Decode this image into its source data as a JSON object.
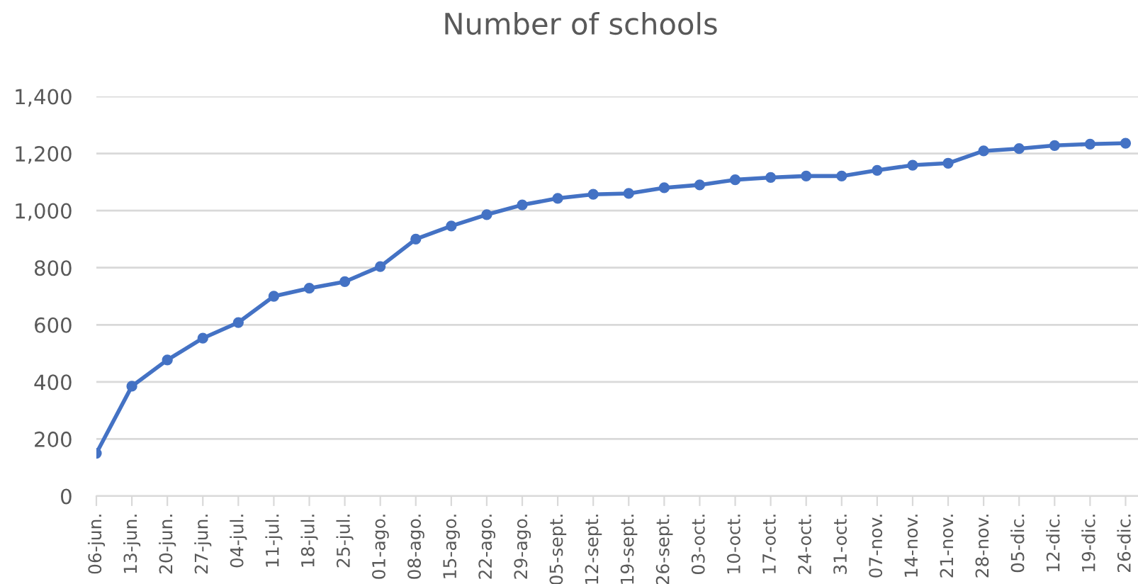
{
  "chart_data": {
    "type": "line",
    "title": "Number of schools",
    "categories": [
      "06-jun.",
      "13-jun.",
      "20-jun.",
      "27-jun.",
      "04-jul.",
      "11-jul.",
      "18-jul.",
      "25-jul.",
      "01-ago.",
      "08-ago.",
      "15-ago.",
      "22-ago.",
      "29-ago.",
      "05-sept.",
      "12-sept.",
      "19-sept.",
      "26-sept.",
      "03-oct.",
      "10-oct.",
      "17-oct.",
      "24-oct.",
      "31-oct.",
      "07-nov.",
      "14-nov.",
      "21-nov.",
      "28-nov.",
      "05-dic.",
      "12-dic.",
      "19-dic.",
      "26-dic."
    ],
    "series": [
      {
        "color": "#4472c4",
        "values": [
          150,
          385,
          477,
          553,
          608,
          700,
          728,
          751,
          804,
          900,
          946,
          986,
          1020,
          1043,
          1057,
          1060,
          1080,
          1090,
          1108,
          1116,
          1121,
          1121,
          1141,
          1159,
          1166,
          1209,
          1217,
          1228,
          1233,
          1236
        ]
      }
    ],
    "ylim": [
      0,
      1400
    ],
    "yticks": [
      {
        "value": 0,
        "label": "0"
      },
      {
        "value": 200,
        "label": "200"
      },
      {
        "value": 400,
        "label": "400"
      },
      {
        "value": 600,
        "label": "600"
      },
      {
        "value": 800,
        "label": "800"
      },
      {
        "value": 1000,
        "label": "1,000"
      },
      {
        "value": 1200,
        "label": "1,200"
      },
      {
        "value": 1400,
        "label": "1,400"
      }
    ],
    "grid": "y",
    "marker": "circle",
    "line_style": "solid"
  }
}
